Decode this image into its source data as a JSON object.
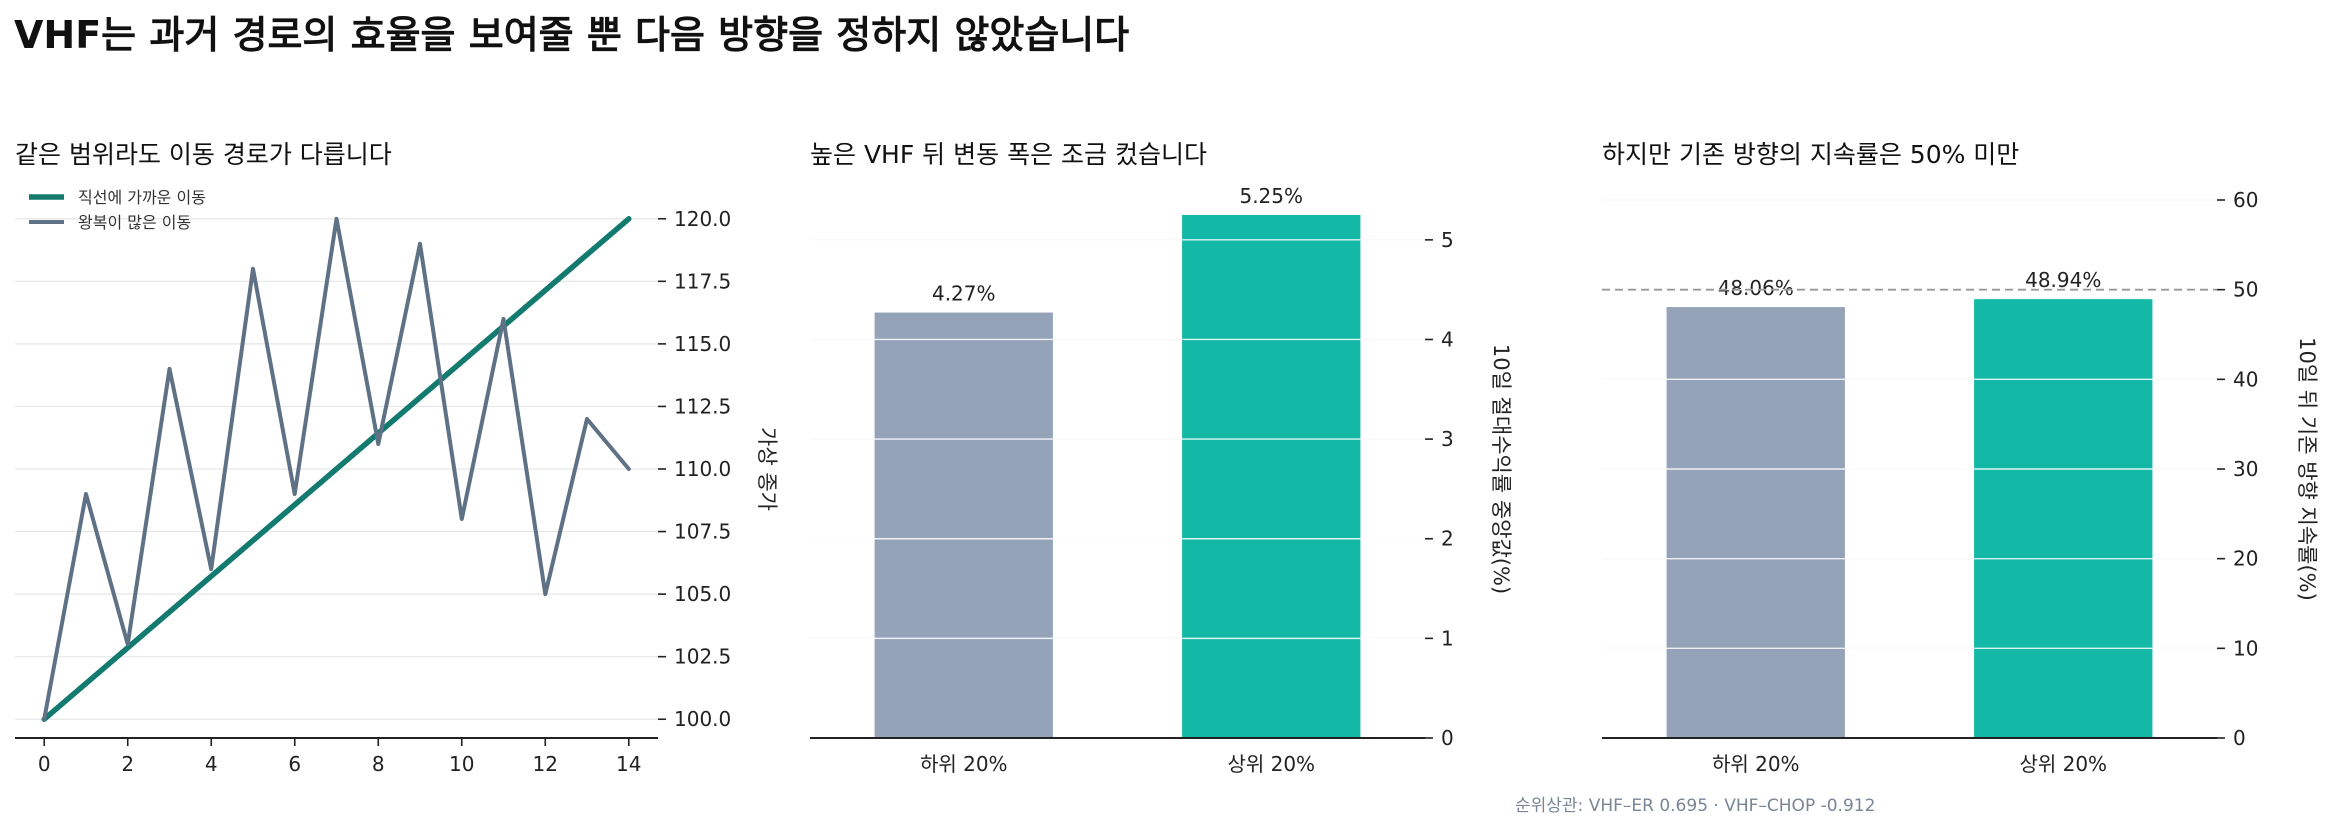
{
  "suptitle": "VHF는 과거 경로의 효율을 보여줄 뿐 다음 방향을 정하지 않았습니다",
  "footnote": "순위상관: VHF–ER 0.695 · VHF–CHOP -0.912",
  "colors": {
    "teal_dark": "#137a70",
    "slate": "#5f7185",
    "bar_gray": "#94a3b8",
    "bar_teal": "#14b8a6",
    "ref_line": "#999999"
  },
  "chart_data": [
    {
      "type": "line",
      "title": "같은 범위라도 이동 경로가 다릅니다",
      "xlabel": "",
      "ylabel": "가상 종가",
      "xlim": [
        -0.7,
        14.7
      ],
      "ylim": [
        99.25,
        120.75
      ],
      "xticks": [
        0,
        2,
        4,
        6,
        8,
        10,
        12,
        14
      ],
      "yticks": [
        100.0,
        102.5,
        105.0,
        107.5,
        110.0,
        112.5,
        115.0,
        117.5,
        120.0
      ],
      "grid": true,
      "legend_position": "top-left",
      "series": [
        {
          "name": "직선에 가까운 이동",
          "color": "#137a70",
          "x": [
            0,
            14
          ],
          "y": [
            100,
            120
          ]
        },
        {
          "name": "왕복이 많은 이동",
          "color": "#5f7185",
          "x": [
            0,
            1,
            2,
            3,
            4,
            5,
            6,
            7,
            8,
            9,
            10,
            11,
            12,
            13,
            14
          ],
          "y": [
            100,
            109,
            103,
            114,
            106,
            118,
            109,
            120,
            111,
            119,
            108,
            116,
            105,
            112,
            110
          ]
        }
      ]
    },
    {
      "type": "bar",
      "title": "높은 VHF 뒤 변동 폭은 조금 컸습니다",
      "xlabel": "",
      "ylabel": "10일 절대수익률 중앙값(%)",
      "ylim": [
        0,
        5.4
      ],
      "yticks": [
        0,
        1,
        2,
        3,
        4,
        5
      ],
      "grid": true,
      "categories": [
        "하위 20%",
        "상위 20%"
      ],
      "values": [
        4.27,
        5.25
      ],
      "value_labels": [
        "4.27%",
        "5.25%"
      ],
      "bar_colors": [
        "#94a3b8",
        "#14b8a6"
      ]
    },
    {
      "type": "bar",
      "title": "하지만 기존 방향의 지속률은 50% 미만",
      "xlabel": "",
      "ylabel": "10일 뒤 기존 방향 지속률(%)",
      "ylim": [
        0,
        60
      ],
      "yticks": [
        0,
        10,
        20,
        30,
        40,
        50,
        60
      ],
      "grid": true,
      "reference_line": 50,
      "categories": [
        "하위 20%",
        "상위 20%"
      ],
      "values": [
        48.06,
        48.94
      ],
      "value_labels": [
        "48.06%",
        "48.94%"
      ],
      "bar_colors": [
        "#94a3b8",
        "#14b8a6"
      ]
    }
  ]
}
